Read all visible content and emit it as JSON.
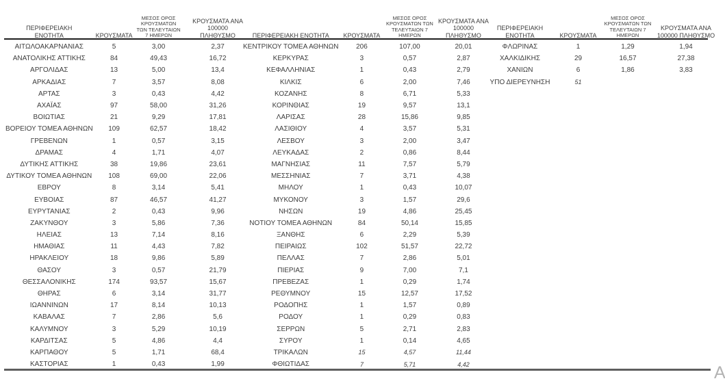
{
  "columns": {
    "region": "ΠΕΡΙΦΕΡΕΙΑΚΗ ΕΝΟΤΗΤΑ",
    "cases": "ΚΡΟΥΣΜΑΤΑ",
    "avg7": "ΜΕΣΟΣ ΟΡΟΣ ΚΡΟΥΣΜΑΤΩΝ ΤΩΝ ΤΕΛΕΥΤΑΙΩΝ 7 ΗΜΕΡΩΝ",
    "per100k": "ΚΡΟΥΣΜΑΤΑ ΑΝΑ 100000 ΠΛΗΘΥΣΜΟ"
  },
  "groups": [
    {
      "rows": [
        {
          "region": "ΑΙΤΩΛΟΑΚΑΡΝΑΝΙΑΣ",
          "cases": "5",
          "avg7": "3,00",
          "per100k": "2,37"
        },
        {
          "region": "ΑΝΑΤΟΛΙΚΗΣ ΑΤΤΙΚΗΣ",
          "cases": "84",
          "avg7": "49,43",
          "per100k": "16,72"
        },
        {
          "region": "ΑΡΓΟΛΙΔΑΣ",
          "cases": "13",
          "avg7": "5,00",
          "per100k": "13,4"
        },
        {
          "region": "ΑΡΚΑΔΙΑΣ",
          "cases": "7",
          "avg7": "3,57",
          "per100k": "8,08"
        },
        {
          "region": "ΑΡΤΑΣ",
          "cases": "3",
          "avg7": "0,43",
          "per100k": "4,42"
        },
        {
          "region": "ΑΧΑΪΑΣ",
          "cases": "97",
          "avg7": "58,00",
          "per100k": "31,26"
        },
        {
          "region": "ΒΟΙΩΤΙΑΣ",
          "cases": "21",
          "avg7": "9,29",
          "per100k": "17,81"
        },
        {
          "region": "ΒΟΡΕΙΟΥ ΤΟΜΕΑ ΑΘΗΝΩΝ",
          "cases": "109",
          "avg7": "62,57",
          "per100k": "18,42"
        },
        {
          "region": "ΓΡΕΒΕΝΩΝ",
          "cases": "1",
          "avg7": "0,57",
          "per100k": "3,15"
        },
        {
          "region": "ΔΡΑΜΑΣ",
          "cases": "4",
          "avg7": "1,71",
          "per100k": "4,07"
        },
        {
          "region": "ΔΥΤΙΚΗΣ ΑΤΤΙΚΗΣ",
          "cases": "38",
          "avg7": "19,86",
          "per100k": "23,61"
        },
        {
          "region": "ΔΥΤΙΚΟΥ ΤΟΜΕΑ ΑΘΗΝΩΝ",
          "cases": "108",
          "avg7": "69,00",
          "per100k": "22,06"
        },
        {
          "region": "ΕΒΡΟΥ",
          "cases": "8",
          "avg7": "3,14",
          "per100k": "5,41"
        },
        {
          "region": "ΕΥΒΟΙΑΣ",
          "cases": "87",
          "avg7": "46,57",
          "per100k": "41,27"
        },
        {
          "region": "ΕΥΡΥΤΑΝΙΑΣ",
          "cases": "2",
          "avg7": "0,43",
          "per100k": "9,96"
        },
        {
          "region": "ΖΑΚΥΝΘΟΥ",
          "cases": "3",
          "avg7": "5,86",
          "per100k": "7,36"
        },
        {
          "region": "ΗΛΕΙΑΣ",
          "cases": "13",
          "avg7": "7,14",
          "per100k": "8,16"
        },
        {
          "region": "ΗΜΑΘΙΑΣ",
          "cases": "11",
          "avg7": "4,43",
          "per100k": "7,82"
        },
        {
          "region": "ΗΡΑΚΛΕΙΟΥ",
          "cases": "18",
          "avg7": "9,86",
          "per100k": "5,89"
        },
        {
          "region": "ΘΑΣΟΥ",
          "cases": "3",
          "avg7": "0,57",
          "per100k": "21,79"
        },
        {
          "region": "ΘΕΣΣΑΛΟΝΙΚΗΣ",
          "cases": "174",
          "avg7": "93,57",
          "per100k": "15,67"
        },
        {
          "region": "ΘΗΡΑΣ",
          "cases": "6",
          "avg7": "3,14",
          "per100k": "31,77"
        },
        {
          "region": "ΙΩΑΝΝΙΝΩΝ",
          "cases": "17",
          "avg7": "8,14",
          "per100k": "10,13"
        },
        {
          "region": "ΚΑΒΑΛΑΣ",
          "cases": "7",
          "avg7": "2,86",
          "per100k": "5,6"
        },
        {
          "region": "ΚΑΛΥΜΝΟΥ",
          "cases": "3",
          "avg7": "5,29",
          "per100k": "10,19"
        },
        {
          "region": "ΚΑΡΔΙΤΣΑΣ",
          "cases": "5",
          "avg7": "4,86",
          "per100k": "4,4"
        },
        {
          "region": "ΚΑΡΠΑΘΟΥ",
          "cases": "5",
          "avg7": "1,71",
          "per100k": "68,4"
        },
        {
          "region": "ΚΑΣΤΟΡΙΑΣ",
          "cases": "1",
          "avg7": "0,43",
          "per100k": "1,99"
        }
      ]
    },
    {
      "rows": [
        {
          "region": "ΚΕΝΤΡΙΚΟΥ ΤΟΜΕΑ ΑΘΗΝΩΝ",
          "cases": "206",
          "avg7": "107,00",
          "per100k": "20,01"
        },
        {
          "region": "ΚΕΡΚΥΡΑΣ",
          "cases": "3",
          "avg7": "0,57",
          "per100k": "2,87"
        },
        {
          "region": "ΚΕΦΑΛΛΗΝΙΑΣ",
          "cases": "1",
          "avg7": "0,43",
          "per100k": "2,79"
        },
        {
          "region": "ΚΙΛΚΙΣ",
          "cases": "6",
          "avg7": "2,00",
          "per100k": "7,46"
        },
        {
          "region": "ΚΟΖΑΝΗΣ",
          "cases": "8",
          "avg7": "6,71",
          "per100k": "5,33"
        },
        {
          "region": "ΚΟΡΙΝΘΙΑΣ",
          "cases": "19",
          "avg7": "9,57",
          "per100k": "13,1"
        },
        {
          "region": "ΛΑΡΙΣΑΣ",
          "cases": "28",
          "avg7": "15,86",
          "per100k": "9,85"
        },
        {
          "region": "ΛΑΣΙΘΙΟΥ",
          "cases": "4",
          "avg7": "3,57",
          "per100k": "5,31"
        },
        {
          "region": "ΛΕΣΒΟΥ",
          "cases": "3",
          "avg7": "2,00",
          "per100k": "3,47"
        },
        {
          "region": "ΛΕΥΚΑΔΑΣ",
          "cases": "2",
          "avg7": "0,86",
          "per100k": "8,44"
        },
        {
          "region": "ΜΑΓΝΗΣΙΑΣ",
          "cases": "11",
          "avg7": "7,57",
          "per100k": "5,79"
        },
        {
          "region": "ΜΕΣΣΗΝΙΑΣ",
          "cases": "7",
          "avg7": "3,71",
          "per100k": "4,38"
        },
        {
          "region": "ΜΗΛΟΥ",
          "cases": "1",
          "avg7": "0,43",
          "per100k": "10,07"
        },
        {
          "region": "ΜΥΚΟΝΟΥ",
          "cases": "3",
          "avg7": "1,57",
          "per100k": "29,6"
        },
        {
          "region": "ΝΗΣΩΝ",
          "cases": "19",
          "avg7": "4,86",
          "per100k": "25,45"
        },
        {
          "region": "ΝΟΤΙΟΥ ΤΟΜΕΑ ΑΘΗΝΩΝ",
          "cases": "84",
          "avg7": "50,14",
          "per100k": "15,85"
        },
        {
          "region": "ΞΑΝΘΗΣ",
          "cases": "6",
          "avg7": "2,29",
          "per100k": "5,39"
        },
        {
          "region": "ΠΕΙΡΑΙΩΣ",
          "cases": "102",
          "avg7": "51,57",
          "per100k": "22,72"
        },
        {
          "region": "ΠΕΛΛΑΣ",
          "cases": "7",
          "avg7": "2,86",
          "per100k": "5,01"
        },
        {
          "region": "ΠΙΕΡΙΑΣ",
          "cases": "9",
          "avg7": "7,00",
          "per100k": "7,1"
        },
        {
          "region": "ΠΡΕΒΕΖΑΣ",
          "cases": "1",
          "avg7": "0,29",
          "per100k": "1,74"
        },
        {
          "region": "ΡΕΘΥΜΝΟΥ",
          "cases": "15",
          "avg7": "12,57",
          "per100k": "17,52"
        },
        {
          "region": "ΡΟΔΟΠΗΣ",
          "cases": "1",
          "avg7": "1,57",
          "per100k": "0,89"
        },
        {
          "region": "ΡΟΔΟΥ",
          "cases": "1",
          "avg7": "0,29",
          "per100k": "0,83"
        },
        {
          "region": "ΣΕΡΡΩΝ",
          "cases": "5",
          "avg7": "2,71",
          "per100k": "2,83"
        },
        {
          "region": "ΣΥΡΟΥ",
          "cases": "1",
          "avg7": "0,14",
          "per100k": "4,65"
        },
        {
          "region": "ΤΡΙΚΑΛΩΝ",
          "cases": "15",
          "avg7": "4,57",
          "per100k": "11,44",
          "italic": true
        },
        {
          "region": "ΦΘΙΩΤΙΔΑΣ",
          "cases": "7",
          "avg7": "5,71",
          "per100k": "4,42",
          "italic": true
        }
      ]
    },
    {
      "rows": [
        {
          "region": "ΦΛΩΡΙΝΑΣ",
          "cases": "1",
          "avg7": "1,29",
          "per100k": "1,94"
        },
        {
          "region": "ΧΑΛΚΙΔΙΚΗΣ",
          "cases": "29",
          "avg7": "16,57",
          "per100k": "27,38"
        },
        {
          "region": "ΧΑΝΙΩΝ",
          "cases": "6",
          "avg7": "1,86",
          "per100k": "3,83"
        },
        {
          "region": "ΥΠΟ ΔΙΕΡΕΥΝΗΣΗ",
          "cases": "51",
          "avg7": "",
          "per100k": "",
          "italic": true
        }
      ]
    }
  ],
  "watermark": "A",
  "colors": {
    "text": "#3d3d3d",
    "header_line": "#1f1f1f",
    "bottom_line": "#5f5f5f",
    "watermark": "#b3b3b3",
    "bg": "#ffffff"
  }
}
